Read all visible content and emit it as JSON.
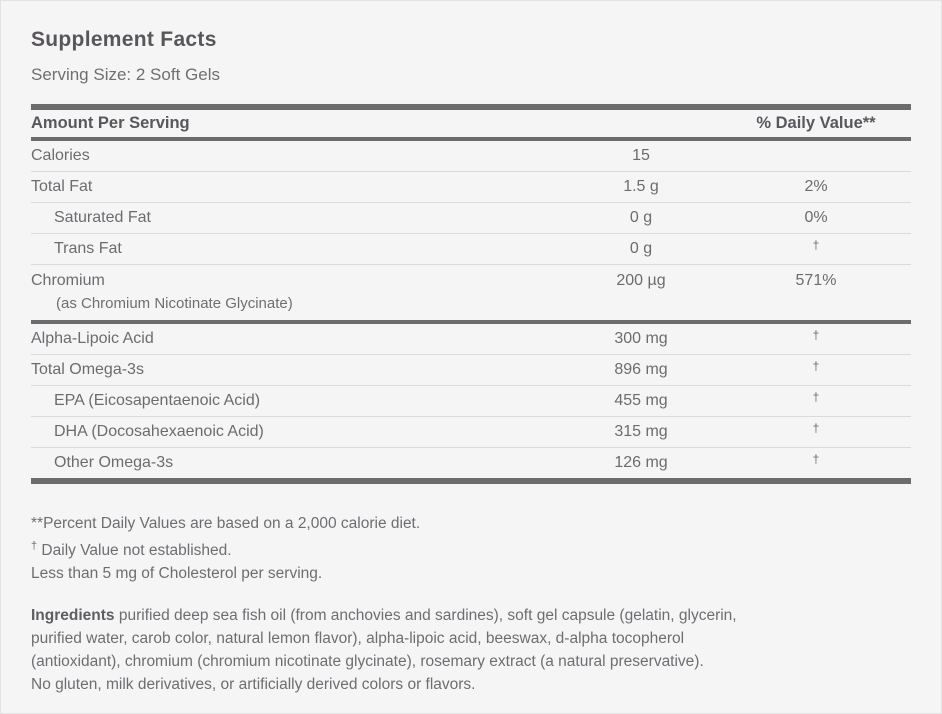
{
  "colors": {
    "background": "#f5f5f6",
    "bar": "#6b6c6e",
    "row_divider": "#d9dadb",
    "title_text": "#59565a",
    "body_text": "#6d6e71"
  },
  "header": {
    "title": "Supplement Facts",
    "serving_size": "Serving Size: 2 Soft Gels"
  },
  "table": {
    "amount_header": "Amount Per Serving",
    "dv_header": "% Daily Value**",
    "sections": [
      {
        "rows": [
          {
            "name": "Calories",
            "amount": "15",
            "dv": "",
            "indent": false
          },
          {
            "name": "Total Fat",
            "amount": "1.5 g",
            "dv": "2%",
            "indent": false
          },
          {
            "name": "Saturated Fat",
            "amount": "0 g",
            "dv": "0%",
            "indent": true
          },
          {
            "name": "Trans Fat",
            "amount": "0 g",
            "dv": "†",
            "indent": true
          },
          {
            "name": "Chromium",
            "subline": "(as Chromium Nicotinate Glycinate)",
            "amount": "200 µg",
            "dv": "571%",
            "indent": false
          }
        ]
      },
      {
        "rows": [
          {
            "name": "Alpha-Lipoic Acid",
            "amount": "300 mg",
            "dv": "†",
            "indent": false
          },
          {
            "name": "Total Omega-3s",
            "amount": "896 mg",
            "dv": "†",
            "indent": false
          },
          {
            "name": "EPA (Eicosapentaenoic Acid)",
            "amount": "455 mg",
            "dv": "†",
            "indent": true
          },
          {
            "name": "DHA (Docosahexaenoic Acid)",
            "amount": "315 mg",
            "dv": "†",
            "indent": true
          },
          {
            "name": "Other Omega-3s",
            "amount": "126 mg",
            "dv": "†",
            "indent": true
          }
        ]
      }
    ]
  },
  "footnotes": [
    "**Percent Daily Values are based on a 2,000 calorie diet.",
    "† Daily Value not established.",
    "Less than 5 mg of Cholesterol per serving."
  ],
  "ingredients": {
    "label": "Ingredients",
    "lines": [
      "purified deep sea fish oil (from anchovies and sardines), soft gel capsule (gelatin, glycerin,",
      "purified water, carob color, natural lemon flavor), alpha-lipoic acid, beeswax, d-alpha tocopherol",
      "(antioxidant), chromium (chromium nicotinate glycinate), rosemary extract (a natural preservative).",
      "No gluten, milk derivatives, or artificially derived colors or flavors."
    ]
  }
}
